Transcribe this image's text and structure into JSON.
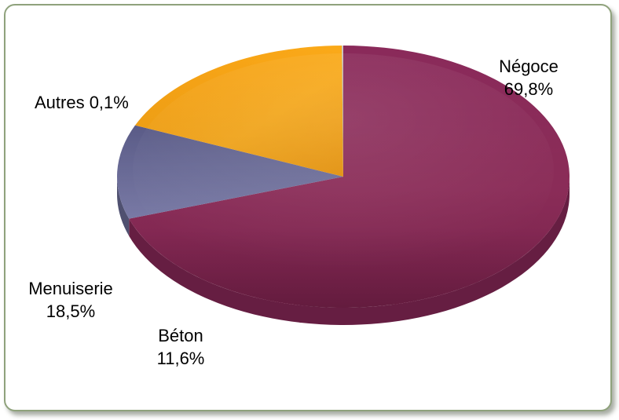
{
  "chart_data": {
    "type": "pie",
    "title": "",
    "slices": [
      {
        "name": "Négoce",
        "value_label": "69,8%",
        "value": 69.8,
        "color": "#8e2a5c"
      },
      {
        "name": "Béton",
        "value_label": "11,6%",
        "value": 11.6,
        "color": "#6e6f9c"
      },
      {
        "name": "Menuiserie",
        "value_label": "18,5%",
        "value": 18.5,
        "color": "#f79f10"
      },
      {
        "name": "Autres",
        "value_label": "0,1%",
        "value": 0.1,
        "color": "#b9b9b9"
      }
    ],
    "legend": "none",
    "style": "3d-tilted",
    "labels": {
      "negoce_name": "Négoce",
      "negoce_value": "69,8%",
      "autres": "Autres 0,1%",
      "menuiserie_name": "Menuiserie",
      "menuiserie_value": "18,5%",
      "beton_name": "Béton",
      "beton_value": "11,6%"
    }
  }
}
